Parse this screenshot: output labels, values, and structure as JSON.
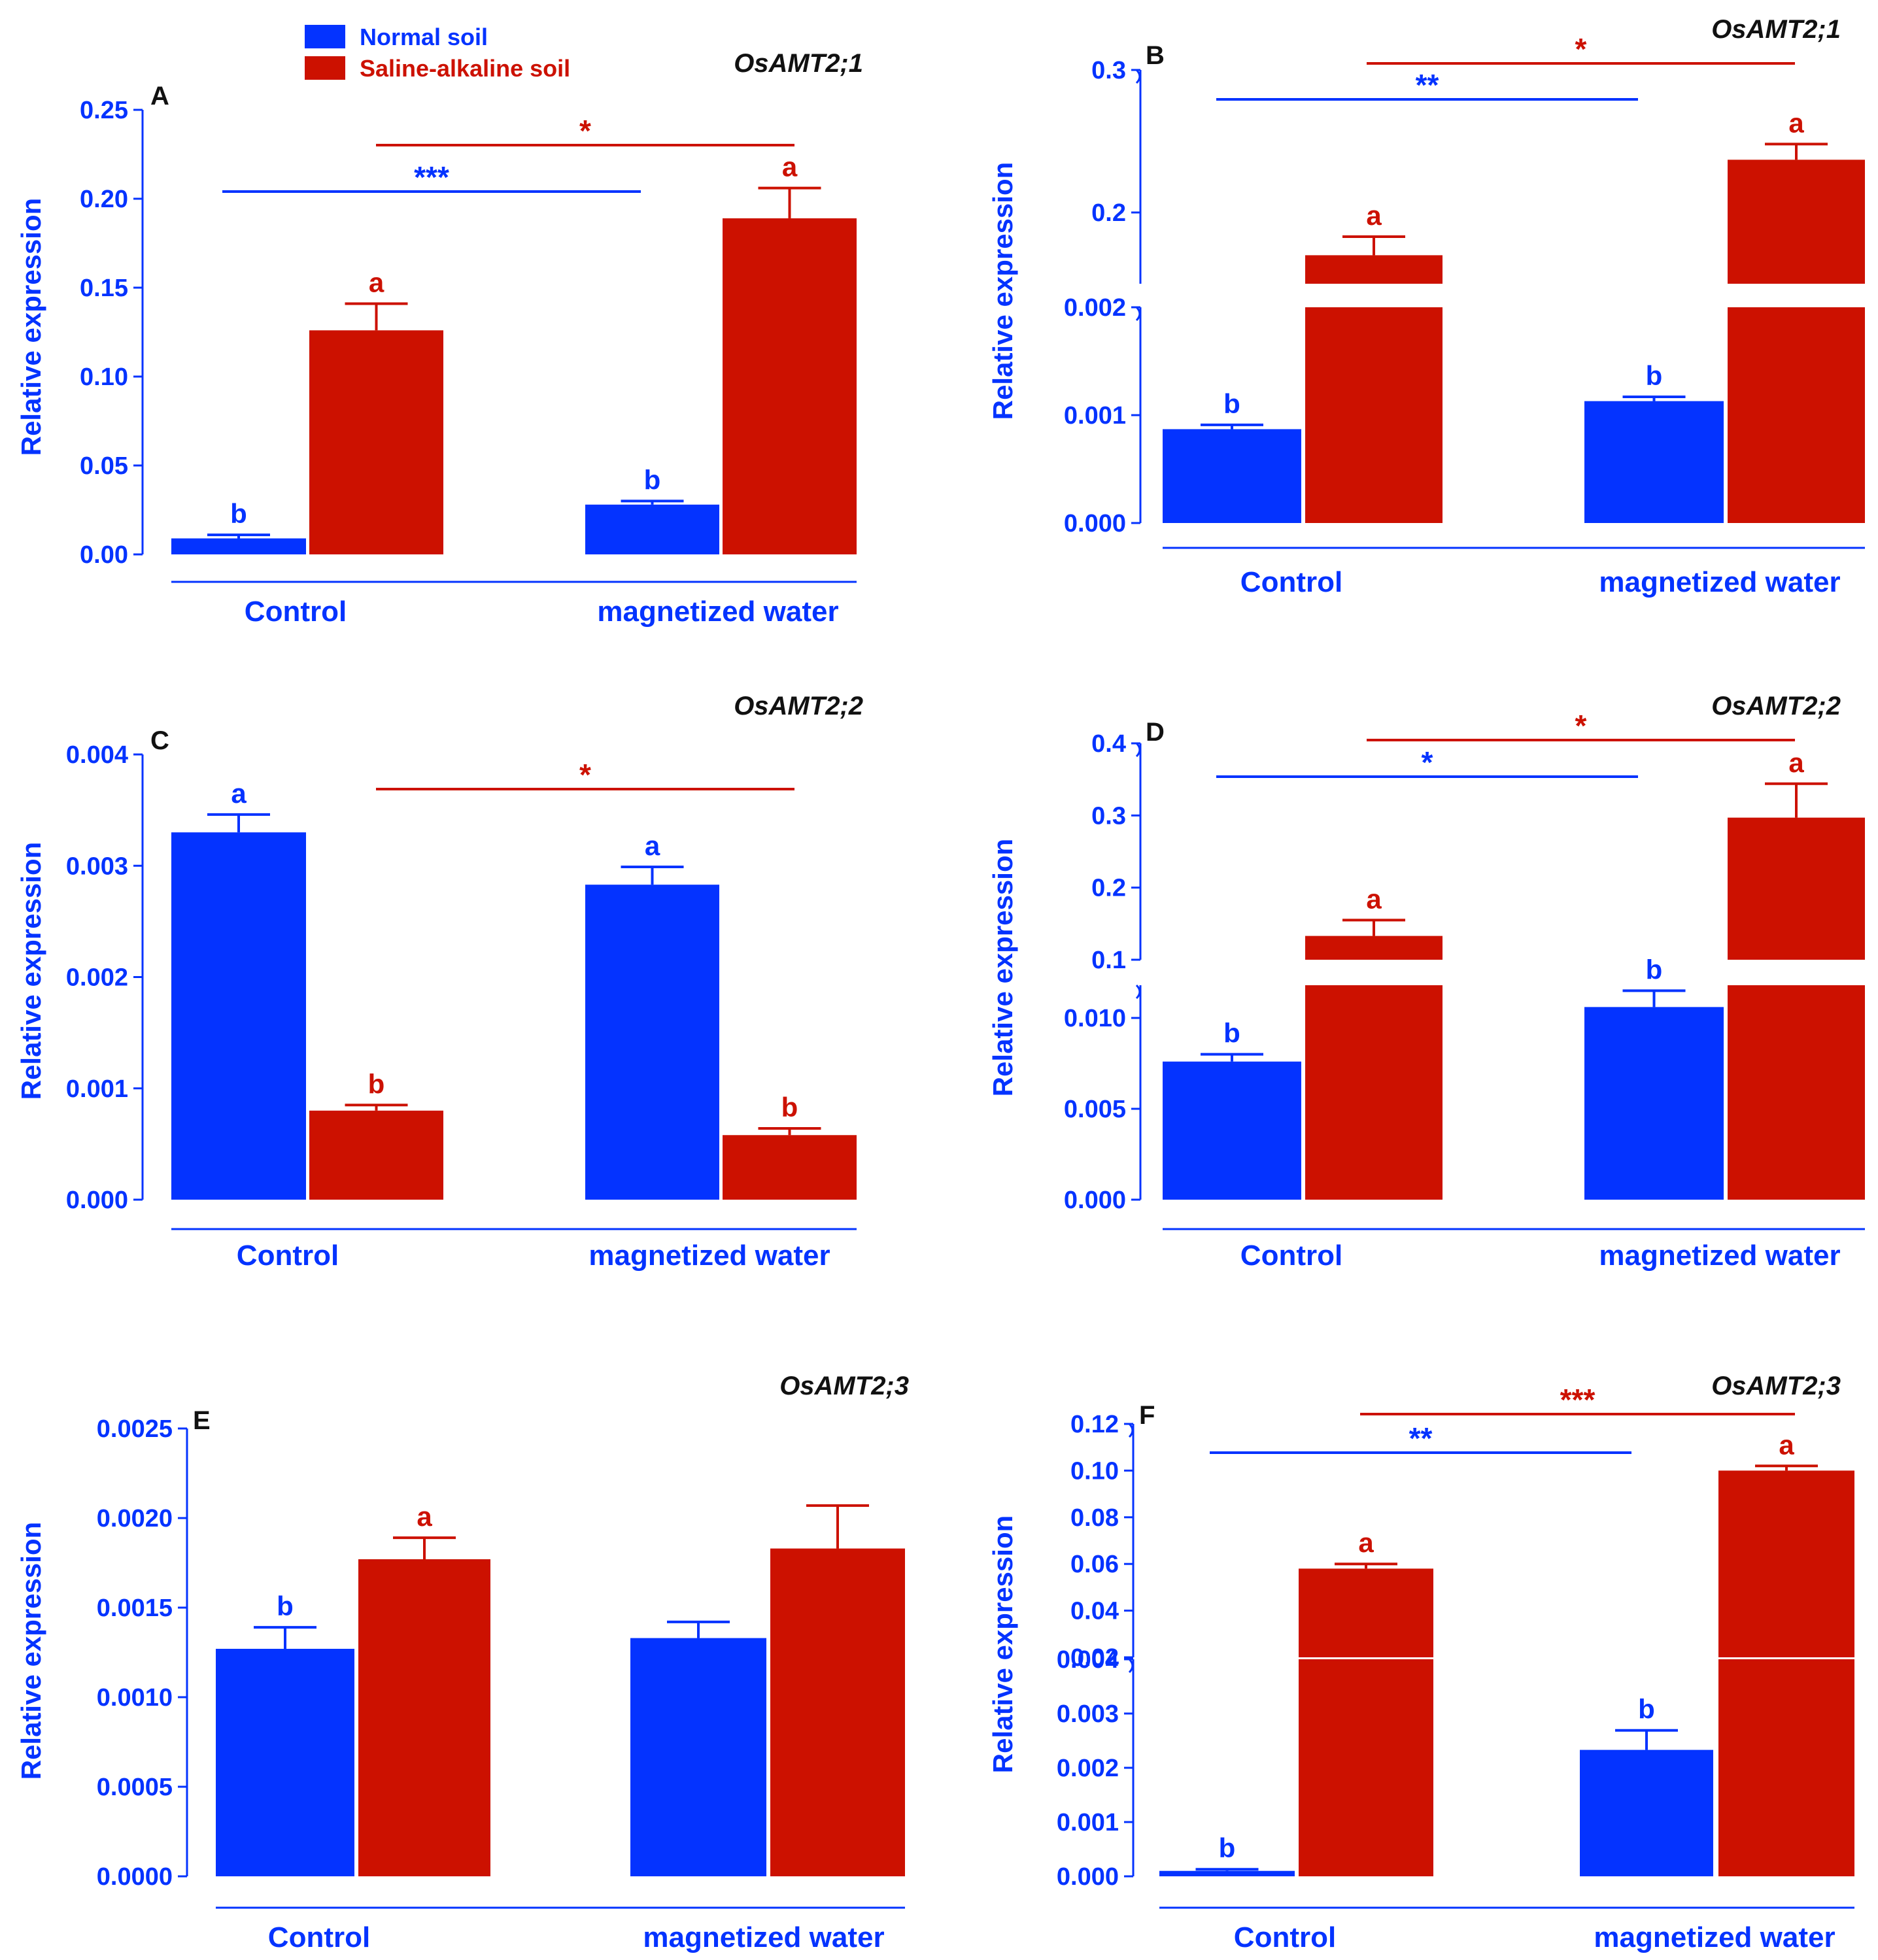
{
  "colors": {
    "normal": "#0433FF",
    "saline": "#CC1100",
    "text_dark": "#111111"
  },
  "legend": [
    {
      "label": "Normal soil",
      "series": "normal"
    },
    {
      "label": "Saline-alkaline soil",
      "series": "saline"
    }
  ],
  "chart_data": [
    {
      "panel": "A",
      "type": "bar",
      "gene": "OsAMT2;1",
      "ylabel": "Relative expression",
      "categories": [
        "Control",
        "magnetized water"
      ],
      "ylim": [
        0,
        0.25
      ],
      "yticks": [
        "0.00",
        "0.05",
        "0.10",
        "0.15",
        "0.20",
        "0.25"
      ],
      "series": [
        {
          "name": "Normal soil",
          "key": "normal",
          "values": [
            0.009,
            0.028
          ],
          "errors": [
            0.002,
            0.002
          ],
          "letters": [
            "b",
            "b"
          ]
        },
        {
          "name": "Saline-alkaline soil",
          "key": "saline",
          "values": [
            0.126,
            0.189
          ],
          "errors": [
            0.015,
            0.017
          ],
          "letters": [
            "a",
            "a"
          ]
        }
      ],
      "significance": [
        {
          "series": "saline",
          "label": "*"
        },
        {
          "series": "normal",
          "label": "***"
        }
      ]
    },
    {
      "panel": "B",
      "type": "bar",
      "gene": "OsAMT2;1",
      "ylabel": "Relative expression",
      "categories": [
        "Control",
        "magnetized water"
      ],
      "ylim": [
        0,
        0.3
      ],
      "broken": true,
      "lower": {
        "ylim": [
          0,
          0.002
        ],
        "yticks": [
          "0.000",
          "0.001",
          "0.002"
        ]
      },
      "upper": {
        "ylim": [
          0.15,
          0.3
        ],
        "yticks": [
          "0.2",
          "0.3"
        ]
      },
      "series": [
        {
          "name": "Normal soil",
          "key": "normal",
          "values": [
            0.00087,
            0.00113
          ],
          "errors": [
            4e-05,
            4e-05
          ],
          "letters": [
            "b",
            "b"
          ]
        },
        {
          "name": "Saline-alkaline soil",
          "key": "saline",
          "values": [
            0.17,
            0.237
          ],
          "errors": [
            0.013,
            0.011
          ],
          "letters": [
            "a",
            "a"
          ]
        }
      ],
      "significance": [
        {
          "series": "saline",
          "label": "*"
        },
        {
          "series": "normal",
          "label": "**"
        }
      ]
    },
    {
      "panel": "C",
      "type": "bar",
      "gene": "OsAMT2;2",
      "ylabel": "Relative expression",
      "categories": [
        "Control",
        "magnetized water"
      ],
      "ylim": [
        0,
        0.004
      ],
      "yticks": [
        "0.000",
        "0.001",
        "0.002",
        "0.003",
        "0.004"
      ],
      "series": [
        {
          "name": "Normal soil",
          "key": "normal",
          "values": [
            0.0033,
            0.00283
          ],
          "errors": [
            0.00016,
            0.00016
          ],
          "letters": [
            "a",
            "a"
          ]
        },
        {
          "name": "Saline-alkaline soil",
          "key": "saline",
          "values": [
            0.0008,
            0.00058
          ],
          "errors": [
            5e-05,
            6e-05
          ],
          "letters": [
            "b",
            "b"
          ]
        }
      ],
      "significance": [
        {
          "series": "saline",
          "label": "*"
        }
      ]
    },
    {
      "panel": "D",
      "type": "bar",
      "gene": "OsAMT2;2",
      "ylabel": "Relative expression",
      "categories": [
        "Control",
        "magnetized water"
      ],
      "ylim": [
        0,
        0.4
      ],
      "broken": true,
      "lower": {
        "ylim": [
          0,
          0.0118
        ],
        "yticks": [
          "0.000",
          "0.005",
          "0.010"
        ]
      },
      "upper": {
        "ylim": [
          0.1,
          0.4
        ],
        "yticks": [
          "0.1",
          "0.2",
          "0.3",
          "0.4"
        ]
      },
      "series": [
        {
          "name": "Normal soil",
          "key": "normal",
          "values": [
            0.0076,
            0.0106
          ],
          "errors": [
            0.0004,
            0.0009
          ],
          "letters": [
            "b",
            "b"
          ]
        },
        {
          "name": "Saline-alkaline soil",
          "key": "saline",
          "values": [
            0.133,
            0.297
          ],
          "errors": [
            0.022,
            0.047
          ],
          "letters": [
            "a",
            "a"
          ]
        }
      ],
      "significance": [
        {
          "series": "saline",
          "label": "*"
        },
        {
          "series": "normal",
          "label": "*"
        }
      ]
    },
    {
      "panel": "E",
      "type": "bar",
      "gene": "OsAMT2;3",
      "ylabel": "Relative expression",
      "categories": [
        "Control",
        "magnetized water"
      ],
      "ylim": [
        0,
        0.0025
      ],
      "yticks": [
        "0.0000",
        "0.0005",
        "0.0010",
        "0.0015",
        "0.0020",
        "0.0025"
      ],
      "series": [
        {
          "name": "Normal soil",
          "key": "normal",
          "values": [
            0.00127,
            0.00133
          ],
          "errors": [
            0.00012,
            9e-05
          ],
          "letters": [
            "b",
            ""
          ]
        },
        {
          "name": "Saline-alkaline soil",
          "key": "saline",
          "values": [
            0.00177,
            0.00183
          ],
          "errors": [
            0.00012,
            0.00024
          ],
          "letters": [
            "a",
            ""
          ]
        }
      ],
      "significance": []
    },
    {
      "panel": "F",
      "type": "bar",
      "gene": "OsAMT2;3",
      "ylabel": "Relative expression",
      "categories": [
        "Control",
        "magnetized water"
      ],
      "ylim": [
        0,
        0.12
      ],
      "broken": true,
      "lower": {
        "ylim": [
          0,
          0.004
        ],
        "yticks": [
          "0.000",
          "0.001",
          "0.002",
          "0.003",
          "0.004"
        ]
      },
      "upper": {
        "ylim": [
          0.02,
          0.12
        ],
        "yticks": [
          "0.02",
          "0.04",
          "0.06",
          "0.08",
          "0.10",
          "0.12"
        ]
      },
      "series": [
        {
          "name": "Normal soil",
          "key": "normal",
          "values": [
            0.0001,
            0.00233
          ],
          "errors": [
            3e-05,
            0.00036
          ],
          "letters": [
            "b",
            "b"
          ]
        },
        {
          "name": "Saline-alkaline soil",
          "key": "saline",
          "values": [
            0.058,
            0.1
          ],
          "errors": [
            0.002,
            0.002
          ],
          "letters": [
            "a",
            "a"
          ]
        }
      ],
      "significance": [
        {
          "series": "saline",
          "label": "***"
        },
        {
          "series": "normal",
          "label": "**"
        }
      ]
    }
  ]
}
